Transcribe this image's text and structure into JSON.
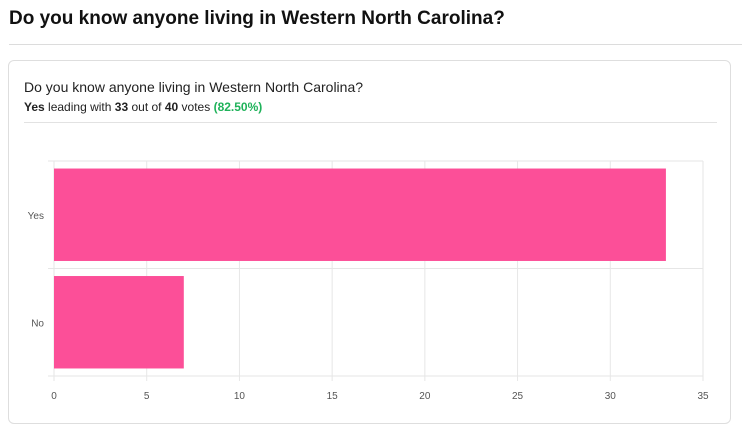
{
  "page": {
    "title": "Do you know anyone living in Western North Carolina?"
  },
  "poll": {
    "question": "Do you know anyone living in Western North Carolina?",
    "leader": "Yes",
    "leading_text": "leading with",
    "leader_votes": "33",
    "out_of_text": "out of",
    "total_votes": "40",
    "votes_text": "votes",
    "percent_text": "(82.50%)"
  },
  "colors": {
    "bar": "#fc4f98",
    "percent": "#1fb25a",
    "grid": "#e6e6e6"
  },
  "chart_data": {
    "type": "bar",
    "orientation": "horizontal",
    "categories": [
      "Yes",
      "No"
    ],
    "values": [
      33,
      7
    ],
    "xlim": [
      0,
      35
    ],
    "xticks": [
      0,
      5,
      10,
      15,
      20,
      25,
      30,
      35
    ],
    "grid": true,
    "title": "",
    "xlabel": "",
    "ylabel": ""
  }
}
